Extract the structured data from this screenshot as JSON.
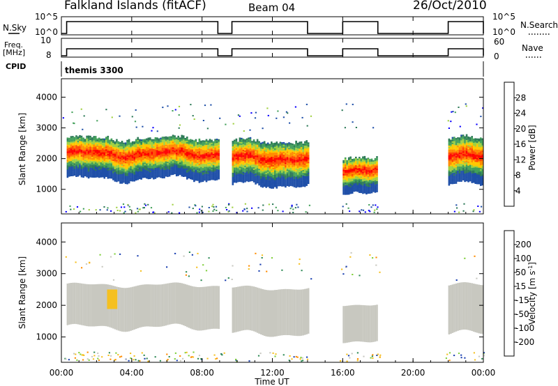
{
  "header": {
    "station": "Falkland Islands (fitACF)",
    "beam": "Beam 04",
    "date": "26/Oct/2010"
  },
  "time_axis": {
    "xlabel": "Time UT",
    "ticks": [
      "00:00",
      "04:00",
      "08:00",
      "12:00",
      "16:00",
      "20:00",
      "00:00"
    ]
  },
  "noise_panel": {
    "left_label": "N.Sky",
    "right_label": "N.Search",
    "left_ticks": [
      "10^5",
      "10^0"
    ],
    "right_ticks": [
      "10^5",
      "10^0"
    ]
  },
  "freq_panel": {
    "left_label_top": "Freq.",
    "left_label_unit": "[MHz]",
    "right_label": "Nave",
    "left_ticks": [
      "10",
      "8"
    ],
    "right_ticks": [
      "60",
      "0"
    ]
  },
  "cpid_panel": {
    "label": "CPID",
    "value": "themis 3300"
  },
  "colors": {
    "power_scale": [
      "#0a00ff",
      "#1f4fa8",
      "#2e7a58",
      "#43a05a",
      "#9fd040",
      "#ffc800",
      "#ff8c00",
      "#ff4a00",
      "#ff0000"
    ],
    "velocity_scale": [
      "#1a3fb0",
      "#2a6a8a",
      "#2e8a55",
      "#7fcf3a",
      "#c8c8c0",
      "#f5c020",
      "#ff8c00",
      "#ff4a00",
      "#ff0000"
    ],
    "ground_scatter": "#c8c8c0"
  },
  "chart_data": [
    {
      "type": "heatmap",
      "name": "power",
      "ylabel": "Slant Range [km]",
      "xlabel": "",
      "xlim_hours": [
        0,
        24
      ],
      "ylim": [
        200,
        4600
      ],
      "yticks": [
        "1000",
        "2000",
        "3000",
        "4000"
      ],
      "colorbar": {
        "label": "Power [dB]",
        "ticks": [
          "4",
          "8",
          "12",
          "16",
          "20",
          "24",
          "28"
        ],
        "range": [
          0,
          32
        ]
      },
      "echo_segments": [
        {
          "start_hour": 0.3,
          "end_hour": 8.9,
          "range_km": [
            1300,
            2700
          ]
        },
        {
          "start_hour": 9.7,
          "end_hour": 14.0,
          "range_km": [
            1100,
            2600
          ]
        },
        {
          "start_hour": 16.0,
          "end_hour": 18.0,
          "range_km": [
            900,
            2100
          ]
        },
        {
          "start_hour": 22.0,
          "end_hour": 24.0,
          "range_km": [
            1100,
            2700
          ]
        }
      ]
    },
    {
      "type": "heatmap",
      "name": "velocity",
      "ylabel": "Slant Range [km]",
      "xlabel": "Time UT",
      "xlim_hours": [
        0,
        24
      ],
      "ylim": [
        200,
        4600
      ],
      "yticks": [
        "1000",
        "2000",
        "3000",
        "4000"
      ],
      "colorbar": {
        "label": "Velocity [m s-1]",
        "label_main": "Velocity [m s",
        "label_exp": "-1",
        "label_close": "]",
        "ticks": [
          "200",
          "100",
          "50",
          "15",
          "-15",
          "-50",
          "-100",
          "-200"
        ]
      },
      "ground_scatter_segments": [
        {
          "start_hour": 0.3,
          "end_hour": 8.9,
          "range_km": [
            1300,
            2700
          ]
        },
        {
          "start_hour": 9.7,
          "end_hour": 14.0,
          "range_km": [
            1100,
            2600
          ]
        },
        {
          "start_hour": 16.0,
          "end_hour": 18.0,
          "range_km": [
            900,
            2100
          ]
        },
        {
          "start_hour": 22.0,
          "end_hour": 24.0,
          "range_km": [
            1100,
            2700
          ]
        }
      ]
    }
  ]
}
